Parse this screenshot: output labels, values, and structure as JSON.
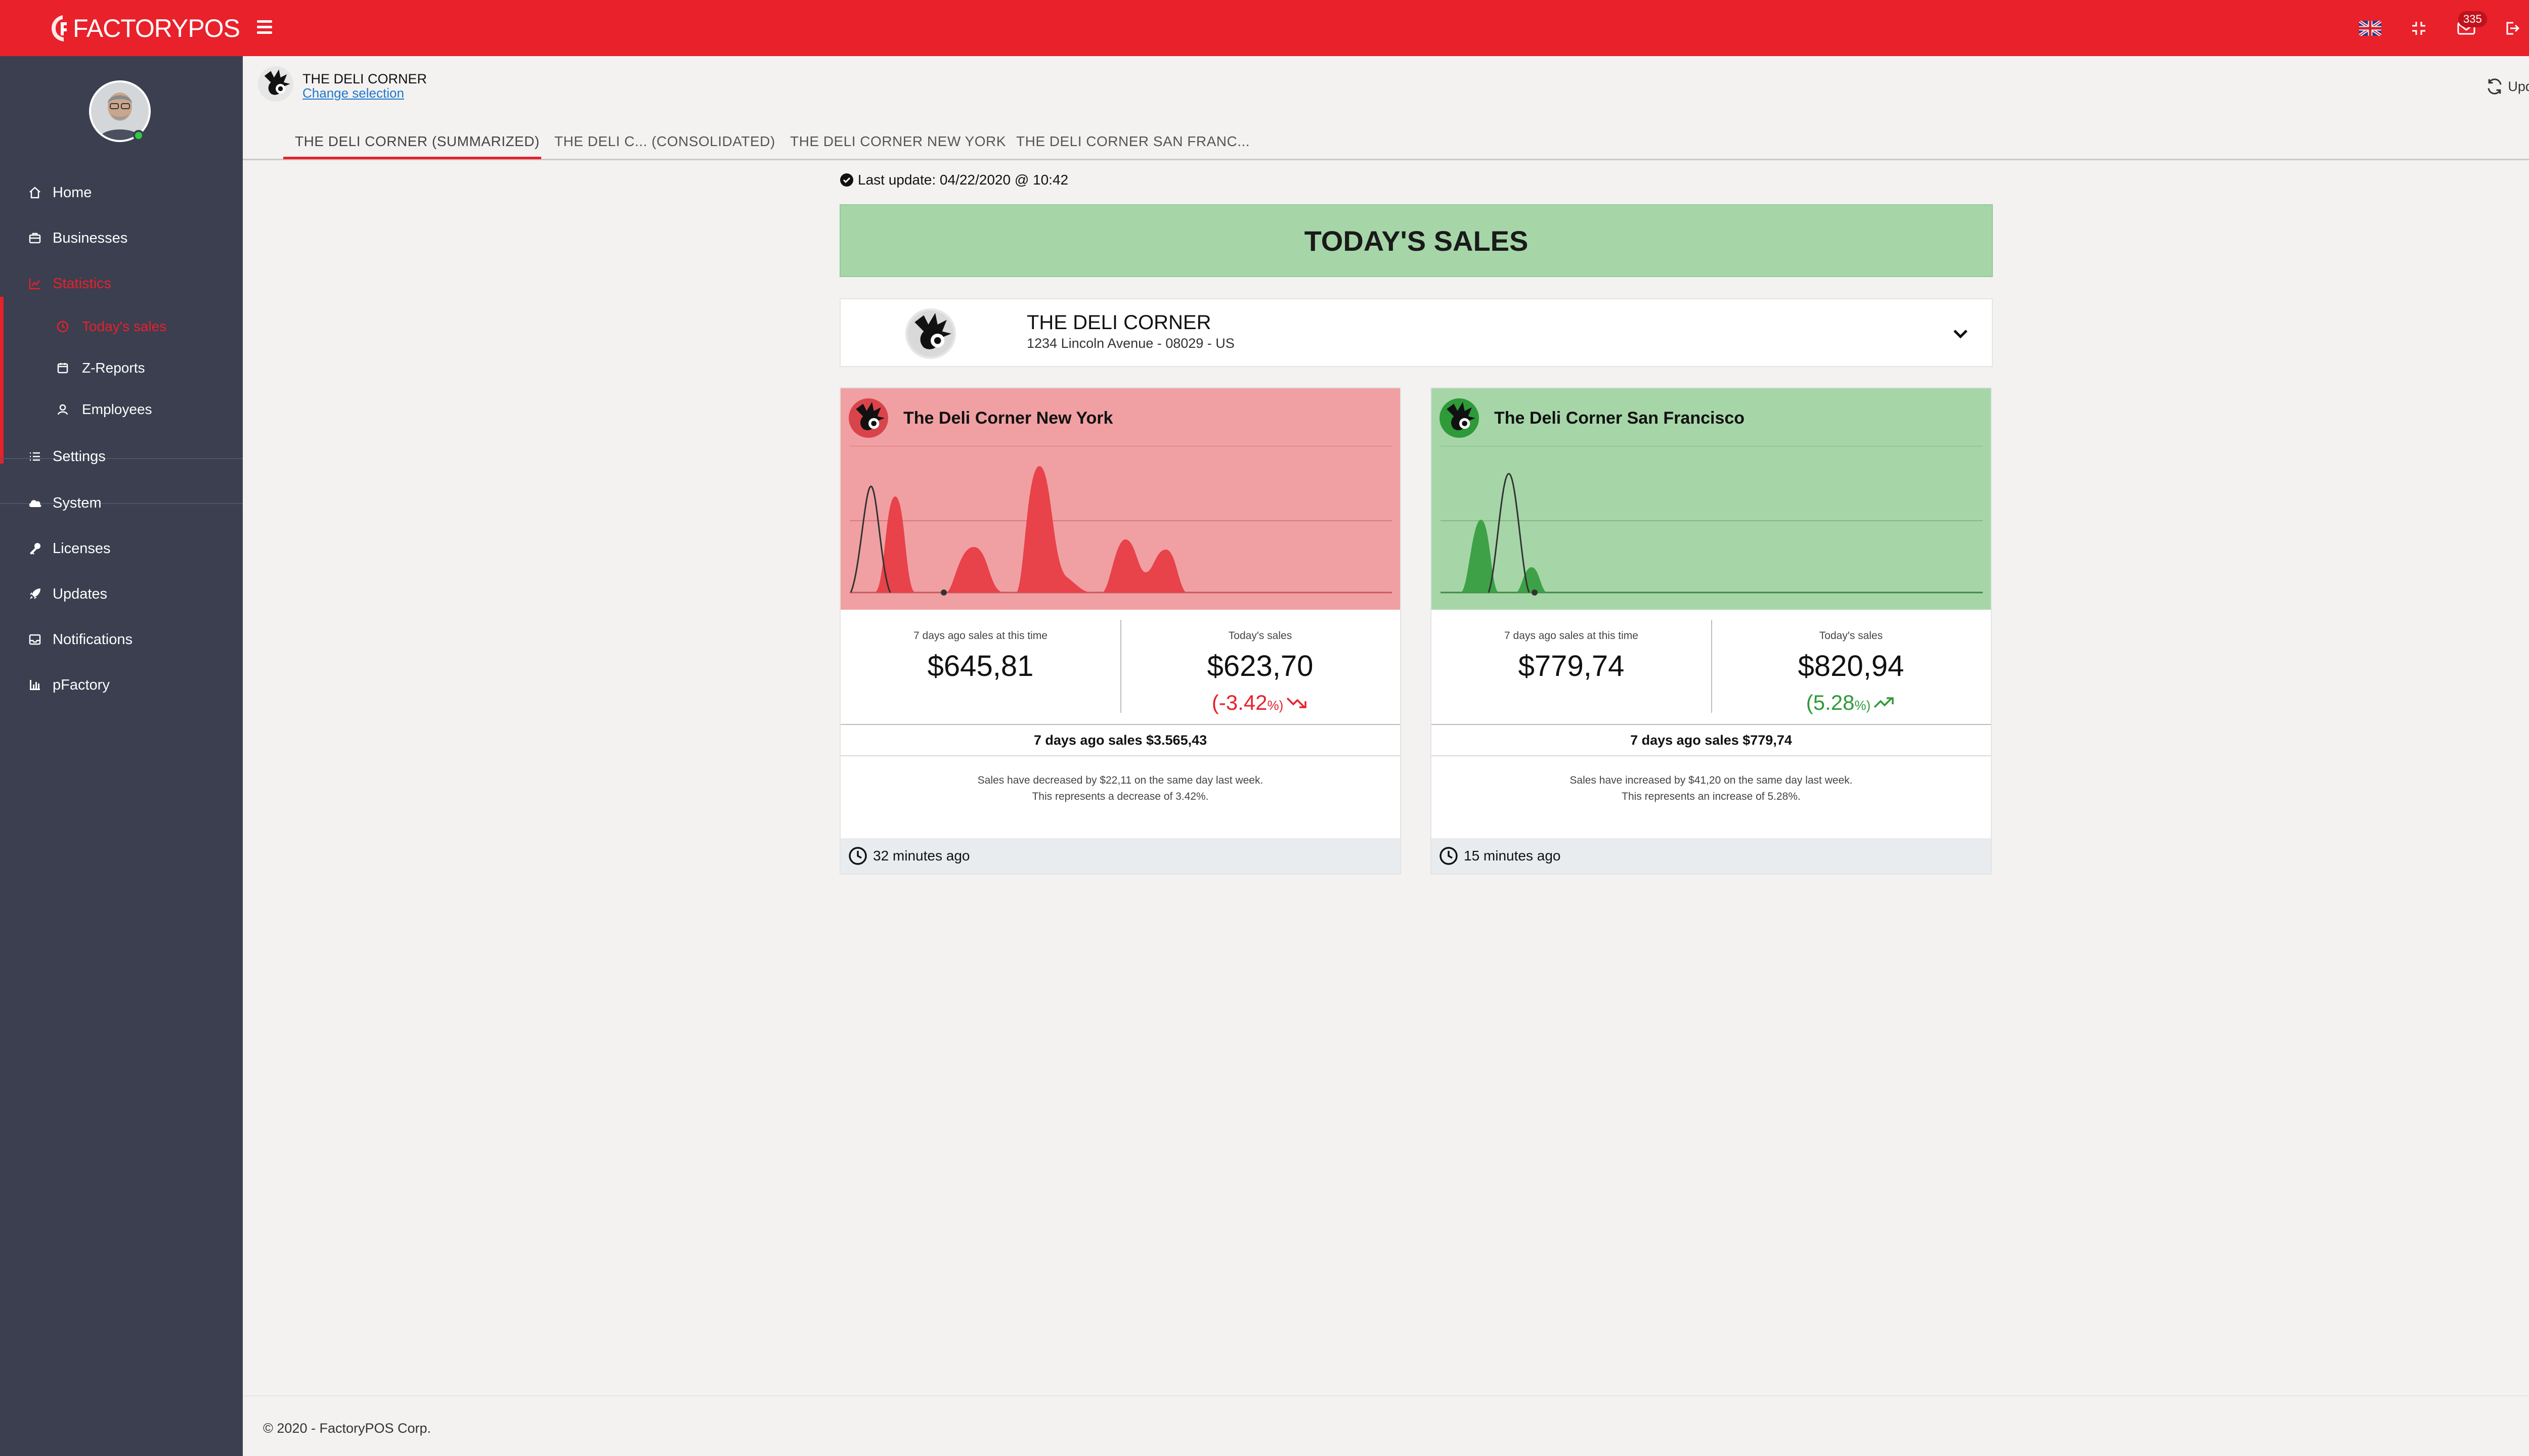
{
  "app": {
    "brand_prefix": "FACTORY",
    "brand_suffix": "POS",
    "notifications_count": "335"
  },
  "sidebar": {
    "items": [
      {
        "label": "Home",
        "icon": "home-icon"
      },
      {
        "label": "Businesses",
        "icon": "briefcase-icon"
      },
      {
        "label": "Statistics",
        "icon": "chart-icon"
      },
      {
        "label": "Settings",
        "icon": "list-icon"
      },
      {
        "label": "System",
        "icon": "cloud-icon"
      },
      {
        "label": "Licenses",
        "icon": "key-icon"
      },
      {
        "label": "Updates",
        "icon": "rocket-icon"
      },
      {
        "label": "Notifications",
        "icon": "inbox-icon"
      },
      {
        "label": "pFactory",
        "icon": "bar-chart-icon"
      }
    ],
    "sub_items": [
      {
        "label": "Today's sales",
        "icon": "clock-icon"
      },
      {
        "label": "Z-Reports",
        "icon": "calendar-icon"
      },
      {
        "label": "Employees",
        "icon": "user-icon"
      }
    ]
  },
  "header": {
    "business_name": "THE DELI CORNER",
    "change_selection": "Change selection",
    "update_all": "Update all",
    "tabs": [
      "THE DELI CORNER (SUMMARIZED)",
      "THE DELI C... (CONSOLIDATED)",
      "THE DELI CORNER NEW YORK",
      "THE DELI CORNER SAN FRANC..."
    ]
  },
  "main": {
    "last_update": "Last update: 04/22/2020 @ 10:42",
    "banner": "TODAY'S SALES",
    "business": {
      "name": "THE DELI CORNER",
      "address": "1234 Lincoln Avenue - 08029 - US"
    },
    "stores": [
      {
        "name": "The Deli Corner New York",
        "status_color": "#f0a0a2",
        "week_ago_label": "7 days ago sales at this time",
        "week_ago_value": "$645,81",
        "today_label": "Today's sales",
        "today_value": "$623,70",
        "delta_open": "(",
        "delta_value": "-3.42",
        "delta_close": "%)",
        "delta_color": "#e8212b",
        "trend": "down",
        "week_total": "7 days ago sales $3.565,43",
        "summary_line1": "Sales have decreased by $22,11 on the same day last week.",
        "summary_line2": "This represents a decrease of 3.42%.",
        "updated": "32 minutes ago"
      },
      {
        "name": "The Deli Corner San Francisco",
        "status_color": "#a6d6a8",
        "week_ago_label": "7 days ago sales at this time",
        "week_ago_value": "$779,74",
        "today_label": "Today's sales",
        "today_value": "$820,94",
        "delta_open": "(",
        "delta_value": "5.28",
        "delta_close": "%)",
        "delta_color": "#2e9a38",
        "trend": "up",
        "week_total": "7 days ago sales $779,74",
        "summary_line1": "Sales have increased by $41,20 on the same day last week.",
        "summary_line2": "This represents an increase of 5.28%.",
        "updated": "15 minutes ago"
      }
    ]
  },
  "footer": {
    "copyright": "© 2020 - FactoryPOS Corp."
  }
}
